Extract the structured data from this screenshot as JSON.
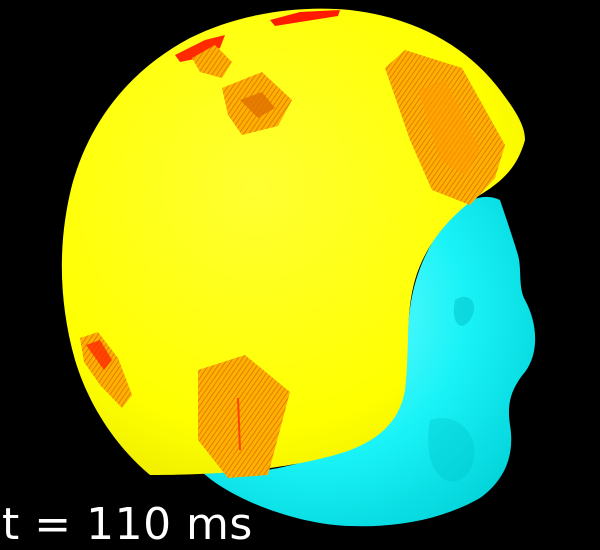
{
  "scene": {
    "background_color": "#000000",
    "head_color": "#00ffff",
    "cap_color": "#ffff00",
    "patch_color": "#ff8800",
    "patch_core_color": "#ff2200"
  },
  "annotation": {
    "time_text": "t = 110 ms"
  }
}
